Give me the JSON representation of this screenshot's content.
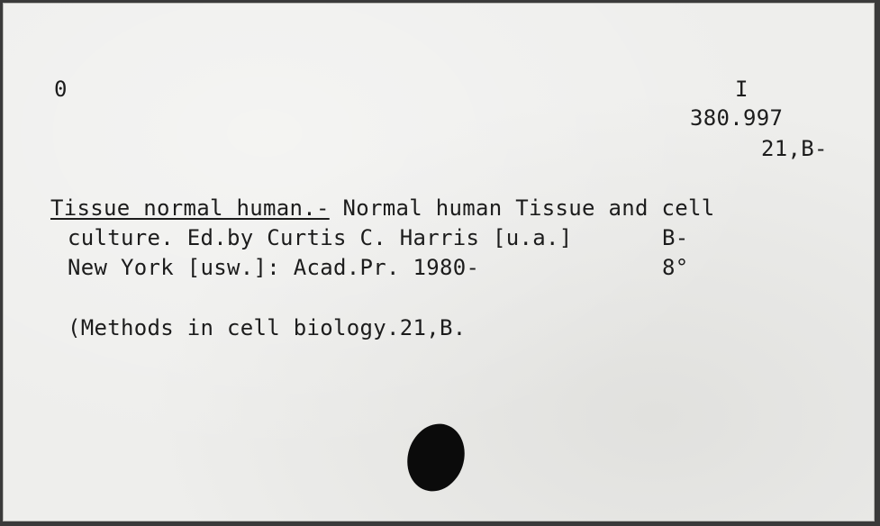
{
  "card": {
    "corner_left": "0",
    "call_number": {
      "line1": "I",
      "line2": "380.997",
      "line3": "21,B-"
    },
    "entry": {
      "heading": "Tissue normal human.-",
      "line1_rest": " Normal human Tissue and cell",
      "line2_a": "culture. Ed.by Curtis C. Harris [u.a.]",
      "line2_b": "B-",
      "line3_a": "New York [usw.]: Acad.Pr. 1980-",
      "line3_b": "8°"
    },
    "series": "(Methods in cell biology.21,B."
  }
}
